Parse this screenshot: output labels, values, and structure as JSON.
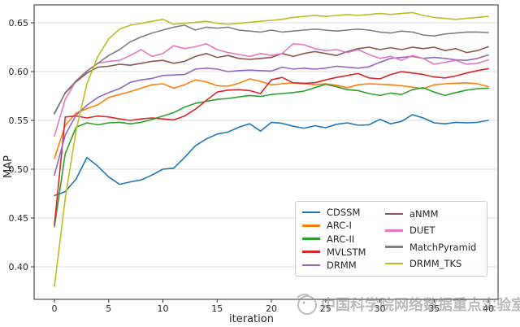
{
  "watermark": {
    "text": "中国科学院网络数据重点实验室"
  },
  "legend": {
    "columns": [
      [
        "CDSSM",
        "ARC-I",
        "ARC-II",
        "MVLSTM",
        "DRMM"
      ],
      [
        "aNMM",
        "DUET",
        "MatchPyramid",
        "DRMM_TKS"
      ]
    ]
  },
  "chart_data": {
    "type": "line",
    "title": "",
    "xlabel": "iteration",
    "ylabel": "MAP",
    "x_ticks": [
      0,
      5,
      10,
      15,
      20,
      25,
      30,
      35,
      40
    ],
    "y_ticks": [
      "0.40",
      "0.45",
      "0.50",
      "0.55",
      "0.60",
      "0.65"
    ],
    "xlim": [
      -1.9,
      41.9
    ],
    "ylim": [
      0.367,
      0.668
    ],
    "grid": "horizontal-only",
    "legend_position": "lower right inside axes, 2 columns",
    "x": [
      0,
      1,
      2,
      3,
      4,
      5,
      6,
      7,
      8,
      9,
      10,
      11,
      12,
      13,
      14,
      15,
      16,
      17,
      18,
      19,
      20,
      21,
      22,
      23,
      24,
      25,
      26,
      27,
      28,
      29,
      30,
      31,
      32,
      33,
      34,
      35,
      36,
      37,
      38,
      39,
      40
    ],
    "series": [
      {
        "name": "CDSSM",
        "color": "#1f77b4",
        "values": [
          0.473,
          0.477,
          0.49,
          0.512,
          0.503,
          0.492,
          0.4845,
          0.487,
          0.489,
          0.494,
          0.5,
          0.501,
          0.512,
          0.524,
          0.531,
          0.536,
          0.538,
          0.543,
          0.5465,
          0.539,
          0.548,
          0.547,
          0.544,
          0.542,
          0.5445,
          0.5425,
          0.546,
          0.5475,
          0.545,
          0.5455,
          0.551,
          0.5465,
          0.549,
          0.5558,
          0.5525,
          0.5475,
          0.5465,
          0.548,
          0.5475,
          0.548,
          0.55
        ]
      },
      {
        "name": "ARC-I",
        "color": "#ff7f0e",
        "values": [
          0.511,
          0.545,
          0.5575,
          0.562,
          0.566,
          0.5735,
          0.5765,
          0.5795,
          0.583,
          0.5865,
          0.5875,
          0.583,
          0.5865,
          0.5915,
          0.5895,
          0.5855,
          0.585,
          0.588,
          0.5925,
          0.59,
          0.5865,
          0.5875,
          0.5885,
          0.5875,
          0.5865,
          0.5875,
          0.586,
          0.5835,
          0.5865,
          0.5875,
          0.587,
          0.5865,
          0.5855,
          0.584,
          0.5825,
          0.5865,
          0.5875,
          0.588,
          0.5885,
          0.5875,
          0.5845
        ]
      },
      {
        "name": "ARC-II",
        "color": "#2ca02c",
        "values": [
          0.441,
          0.516,
          0.543,
          0.5475,
          0.5455,
          0.5475,
          0.548,
          0.5465,
          0.548,
          0.551,
          0.5545,
          0.558,
          0.5635,
          0.5675,
          0.5695,
          0.5715,
          0.5725,
          0.574,
          0.5755,
          0.5745,
          0.5765,
          0.5775,
          0.5785,
          0.58,
          0.5835,
          0.587,
          0.5845,
          0.5815,
          0.5805,
          0.5775,
          0.5755,
          0.578,
          0.5765,
          0.5815,
          0.5835,
          0.579,
          0.5755,
          0.5785,
          0.581,
          0.5825,
          0.583
        ]
      },
      {
        "name": "MVLSTM",
        "color": "#d62728",
        "values": [
          0.443,
          0.5535,
          0.5545,
          0.5525,
          0.5545,
          0.5535,
          0.5515,
          0.55,
          0.5515,
          0.5525,
          0.5515,
          0.5505,
          0.5545,
          0.5615,
          0.5705,
          0.579,
          0.581,
          0.5815,
          0.5805,
          0.5775,
          0.5915,
          0.594,
          0.5885,
          0.588,
          0.5885,
          0.5915,
          0.594,
          0.596,
          0.598,
          0.5935,
          0.5925,
          0.597,
          0.6,
          0.5985,
          0.597,
          0.5945,
          0.5935,
          0.5955,
          0.5985,
          0.601,
          0.603
        ]
      },
      {
        "name": "DRMM",
        "color": "#9467bd",
        "values": [
          0.494,
          0.535,
          0.5555,
          0.5655,
          0.5735,
          0.5785,
          0.5825,
          0.589,
          0.5915,
          0.593,
          0.596,
          0.5965,
          0.597,
          0.6025,
          0.6035,
          0.6025,
          0.6,
          0.601,
          0.6015,
          0.601,
          0.6005,
          0.6045,
          0.6025,
          0.6035,
          0.6025,
          0.6035,
          0.6055,
          0.6045,
          0.6035,
          0.605,
          0.6095,
          0.6135,
          0.6145,
          0.6155,
          0.6135,
          0.6145,
          0.6135,
          0.612,
          0.6115,
          0.6135,
          0.617
        ]
      },
      {
        "name": "aNMM",
        "color": "#8c564b",
        "values": [
          0.5575,
          0.578,
          0.5895,
          0.5985,
          0.6045,
          0.6055,
          0.6075,
          0.6065,
          0.6085,
          0.6105,
          0.6115,
          0.6085,
          0.6105,
          0.6155,
          0.6185,
          0.6145,
          0.6165,
          0.6135,
          0.6125,
          0.6135,
          0.6145,
          0.6185,
          0.6155,
          0.6185,
          0.6205,
          0.6185,
          0.6165,
          0.6205,
          0.6235,
          0.625,
          0.6225,
          0.6245,
          0.6225,
          0.625,
          0.6235,
          0.625,
          0.6215,
          0.6235,
          0.6195,
          0.6215,
          0.6255
        ]
      },
      {
        "name": "DUET",
        "color": "#e377c2",
        "values": [
          0.534,
          0.5715,
          0.5905,
          0.6005,
          0.6085,
          0.6105,
          0.6115,
          0.6165,
          0.6225,
          0.6155,
          0.6185,
          0.6265,
          0.6235,
          0.6255,
          0.6285,
          0.6225,
          0.6195,
          0.6175,
          0.6155,
          0.6185,
          0.6165,
          0.6185,
          0.6285,
          0.6275,
          0.6235,
          0.6215,
          0.6225,
          0.6195,
          0.6225,
          0.6175,
          0.6135,
          0.6155,
          0.6115,
          0.6165,
          0.6135,
          0.6075,
          0.6095,
          0.6115,
          0.6075,
          0.6085,
          0.612
        ]
      },
      {
        "name": "MatchPyramid",
        "color": "#7f7f7f",
        "values": [
          0.5565,
          0.5785,
          0.5905,
          0.6005,
          0.6085,
          0.6165,
          0.6225,
          0.6305,
          0.6355,
          0.6395,
          0.6425,
          0.6455,
          0.6475,
          0.6425,
          0.6455,
          0.6445,
          0.6455,
          0.6425,
          0.6415,
          0.6405,
          0.6425,
          0.6405,
          0.6415,
          0.6425,
          0.6435,
          0.6425,
          0.6415,
          0.6425,
          0.6435,
          0.6425,
          0.6405,
          0.6395,
          0.6415,
          0.6405,
          0.6375,
          0.6365,
          0.6385,
          0.6395,
          0.6405,
          0.6405,
          0.64
        ]
      },
      {
        "name": "DRMM_TKS",
        "color": "#bcbd22",
        "values": [
          0.38,
          0.47,
          0.54,
          0.5875,
          0.6155,
          0.6335,
          0.6435,
          0.6475,
          0.6495,
          0.6515,
          0.6535,
          0.6485,
          0.6495,
          0.6505,
          0.6515,
          0.6495,
          0.6485,
          0.6495,
          0.6505,
          0.6515,
          0.6525,
          0.6535,
          0.6555,
          0.6565,
          0.6575,
          0.6565,
          0.6575,
          0.6585,
          0.6575,
          0.6585,
          0.6595,
          0.6585,
          0.6595,
          0.6605,
          0.6575,
          0.6555,
          0.6545,
          0.6535,
          0.6545,
          0.6555,
          0.6565
        ]
      }
    ]
  }
}
